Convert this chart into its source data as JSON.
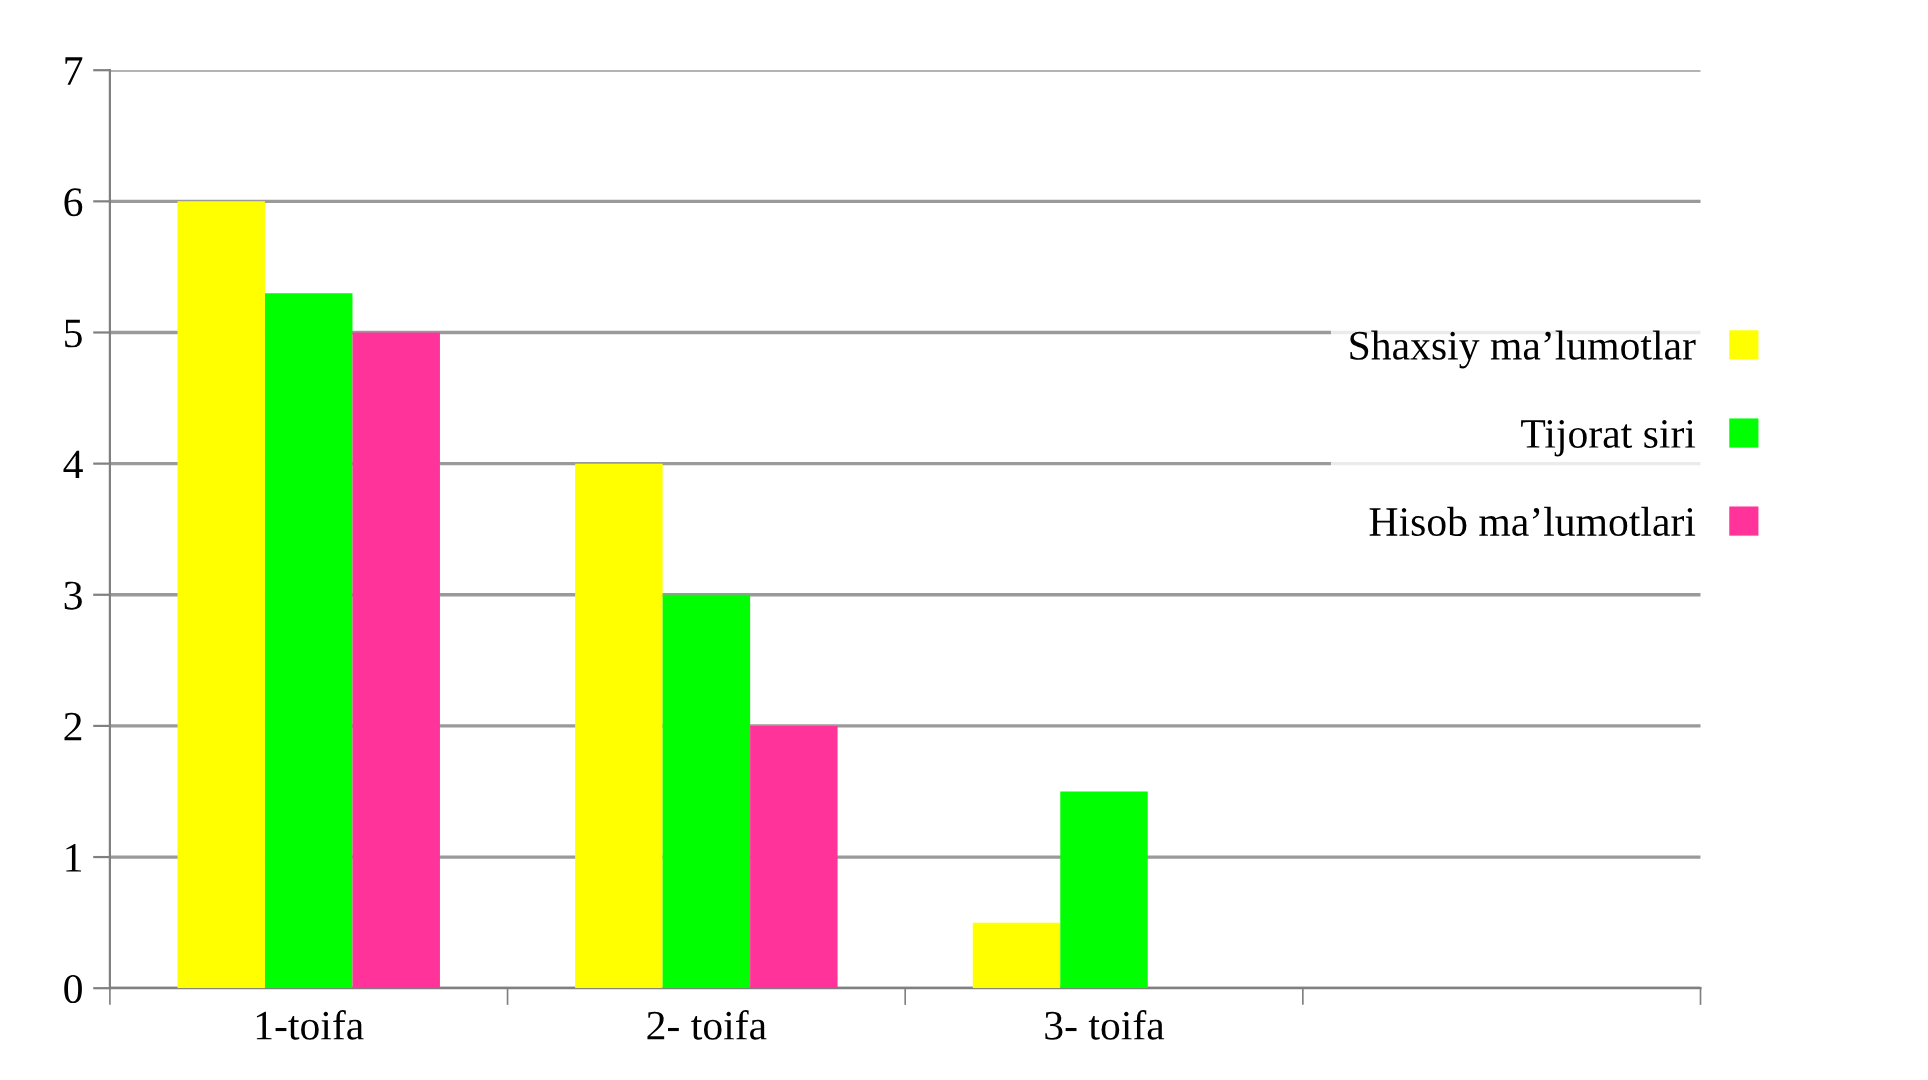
{
  "chart_data": {
    "type": "bar",
    "categories": [
      "1-toifa",
      "2- toifa",
      "3- toifa",
      null
    ],
    "series": [
      {
        "name": "Shaxsiy ma’lumotlar",
        "color": "#ffff00",
        "values": [
          6,
          4,
          0.5,
          null
        ]
      },
      {
        "name": "Tijorat siri",
        "color": "#00ff00",
        "values": [
          5.3,
          3,
          1.5,
          null
        ]
      },
      {
        "name": "Hisob ma’lumotlari",
        "color": "#ff3399",
        "values": [
          5,
          2,
          0,
          null
        ]
      }
    ],
    "ylim": [
      0,
      7
    ],
    "yticks": [
      0,
      1,
      2,
      3,
      4,
      5,
      6,
      7
    ],
    "grid": "y",
    "legend": "right"
  }
}
